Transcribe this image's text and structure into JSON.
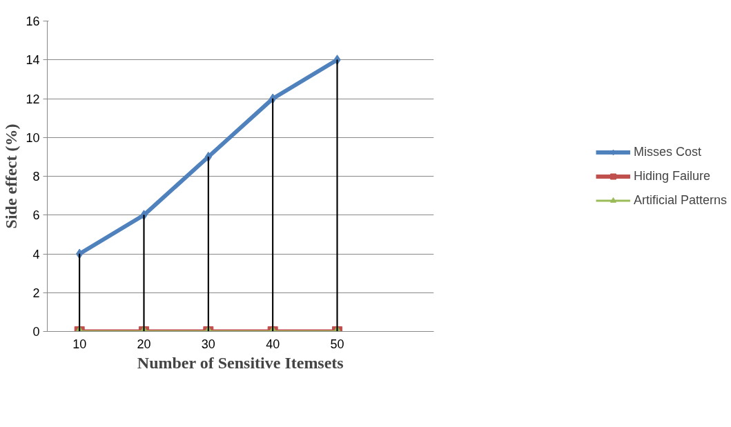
{
  "chart_data": {
    "type": "line",
    "xlabel": "Number of Sensitive Itemsets",
    "ylabel": "Side effect (%)",
    "categories": [
      "10",
      "20",
      "30",
      "40",
      "50",
      null
    ],
    "series": [
      {
        "name": "Misses Cost",
        "color": "#4f81bd",
        "marker": "diamond",
        "values": [
          4,
          6,
          9,
          12,
          14,
          null
        ]
      },
      {
        "name": "Hiding Failure",
        "color": "#c0504d",
        "marker": "square",
        "values": [
          0,
          0,
          0,
          0,
          0,
          null
        ]
      },
      {
        "name": "Artificial Patterns",
        "color": "#9bbb59",
        "marker": "triangle",
        "values": [
          0,
          0,
          0,
          0,
          0,
          null
        ]
      },
      {
        "type": "bar",
        "color": "#000000",
        "values": [
          4,
          6,
          9,
          12,
          14,
          null
        ]
      }
    ],
    "ylim": [
      0,
      16
    ],
    "yticks": [
      0,
      2,
      4,
      6,
      8,
      10,
      12,
      14,
      16
    ],
    "grid": "y",
    "legend": "right"
  }
}
